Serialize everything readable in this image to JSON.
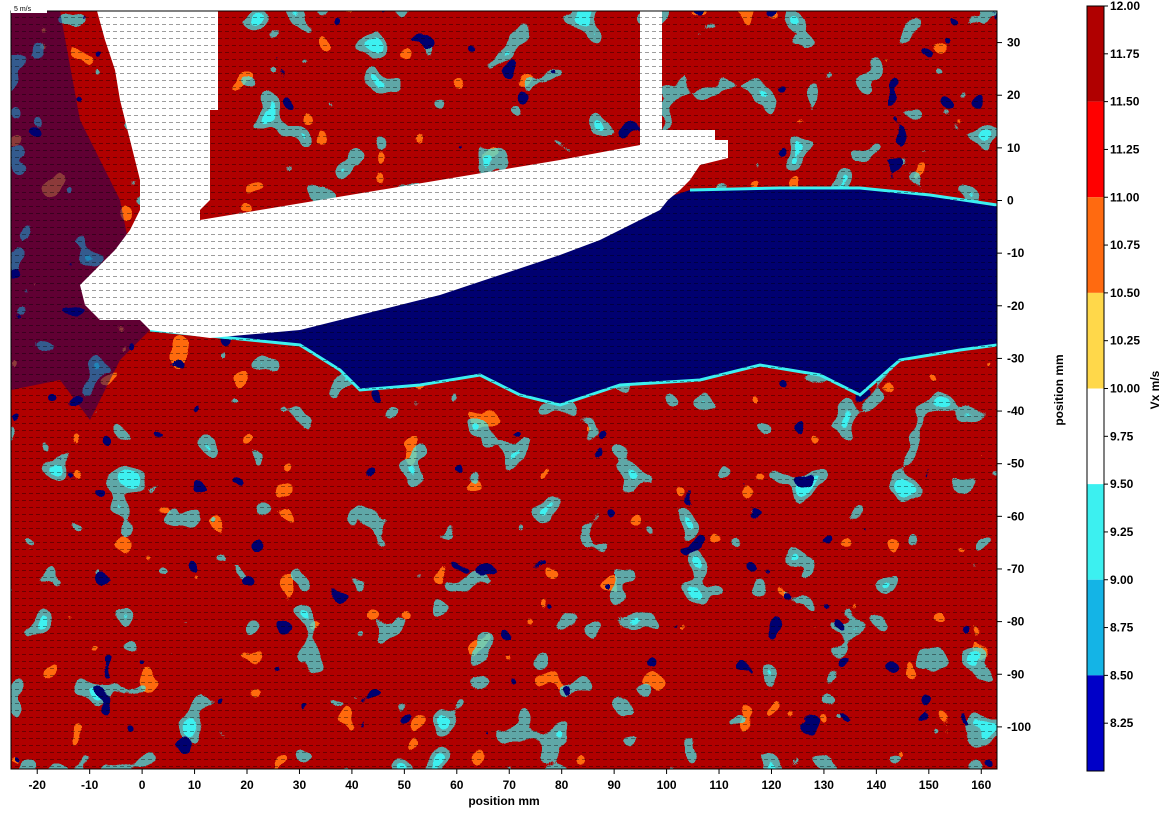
{
  "chart_data": {
    "type": "heatmap",
    "title": "",
    "xlabel": "position mm",
    "ylabel": "position mm",
    "xlim": [
      -25,
      163
    ],
    "ylim": [
      -108,
      36
    ],
    "x_ticks": [
      -20,
      -10,
      0,
      10,
      20,
      30,
      40,
      50,
      60,
      70,
      80,
      90,
      100,
      110,
      120,
      130,
      140,
      150,
      160
    ],
    "y_ticks": [
      30,
      20,
      10,
      0,
      -10,
      -20,
      -30,
      -40,
      -50,
      -60,
      -70,
      -80,
      -90,
      -100
    ],
    "vector_scale_label": "5 m/s",
    "colorbar": {
      "label": "Vx m/s",
      "range": [
        8.0,
        12.0
      ],
      "ticks": [
        "12.00",
        "11.75",
        "11.50",
        "11.25",
        "11.00",
        "10.75",
        "10.50",
        "10.25",
        "10.00",
        "9.75",
        "9.50",
        "9.25",
        "9.00",
        "8.75",
        "8.50",
        "8.25"
      ],
      "levels": [
        {
          "from": 11.5,
          "to": 12.0,
          "color": "#b00000"
        },
        {
          "from": 11.0,
          "to": 11.5,
          "color": "#ff0000"
        },
        {
          "from": 10.5,
          "to": 11.0,
          "color": "#ff6a10"
        },
        {
          "from": 10.0,
          "to": 10.5,
          "color": "#ffd84a"
        },
        {
          "from": 9.5,
          "to": 10.0,
          "color": "#ffffff"
        },
        {
          "from": 9.0,
          "to": 9.5,
          "color": "#3cf0f0"
        },
        {
          "from": 8.5,
          "to": 9.0,
          "color": "#14b4e6"
        },
        {
          "from": 8.0,
          "to": 8.5,
          "color": "#0000c8"
        },
        {
          "from": 7.5,
          "to": 8.0,
          "color": "#000070"
        }
      ]
    },
    "regions": {
      "masked_color": "#ffffff",
      "wake_color": "#000070",
      "background_color": "#b00000"
    }
  }
}
